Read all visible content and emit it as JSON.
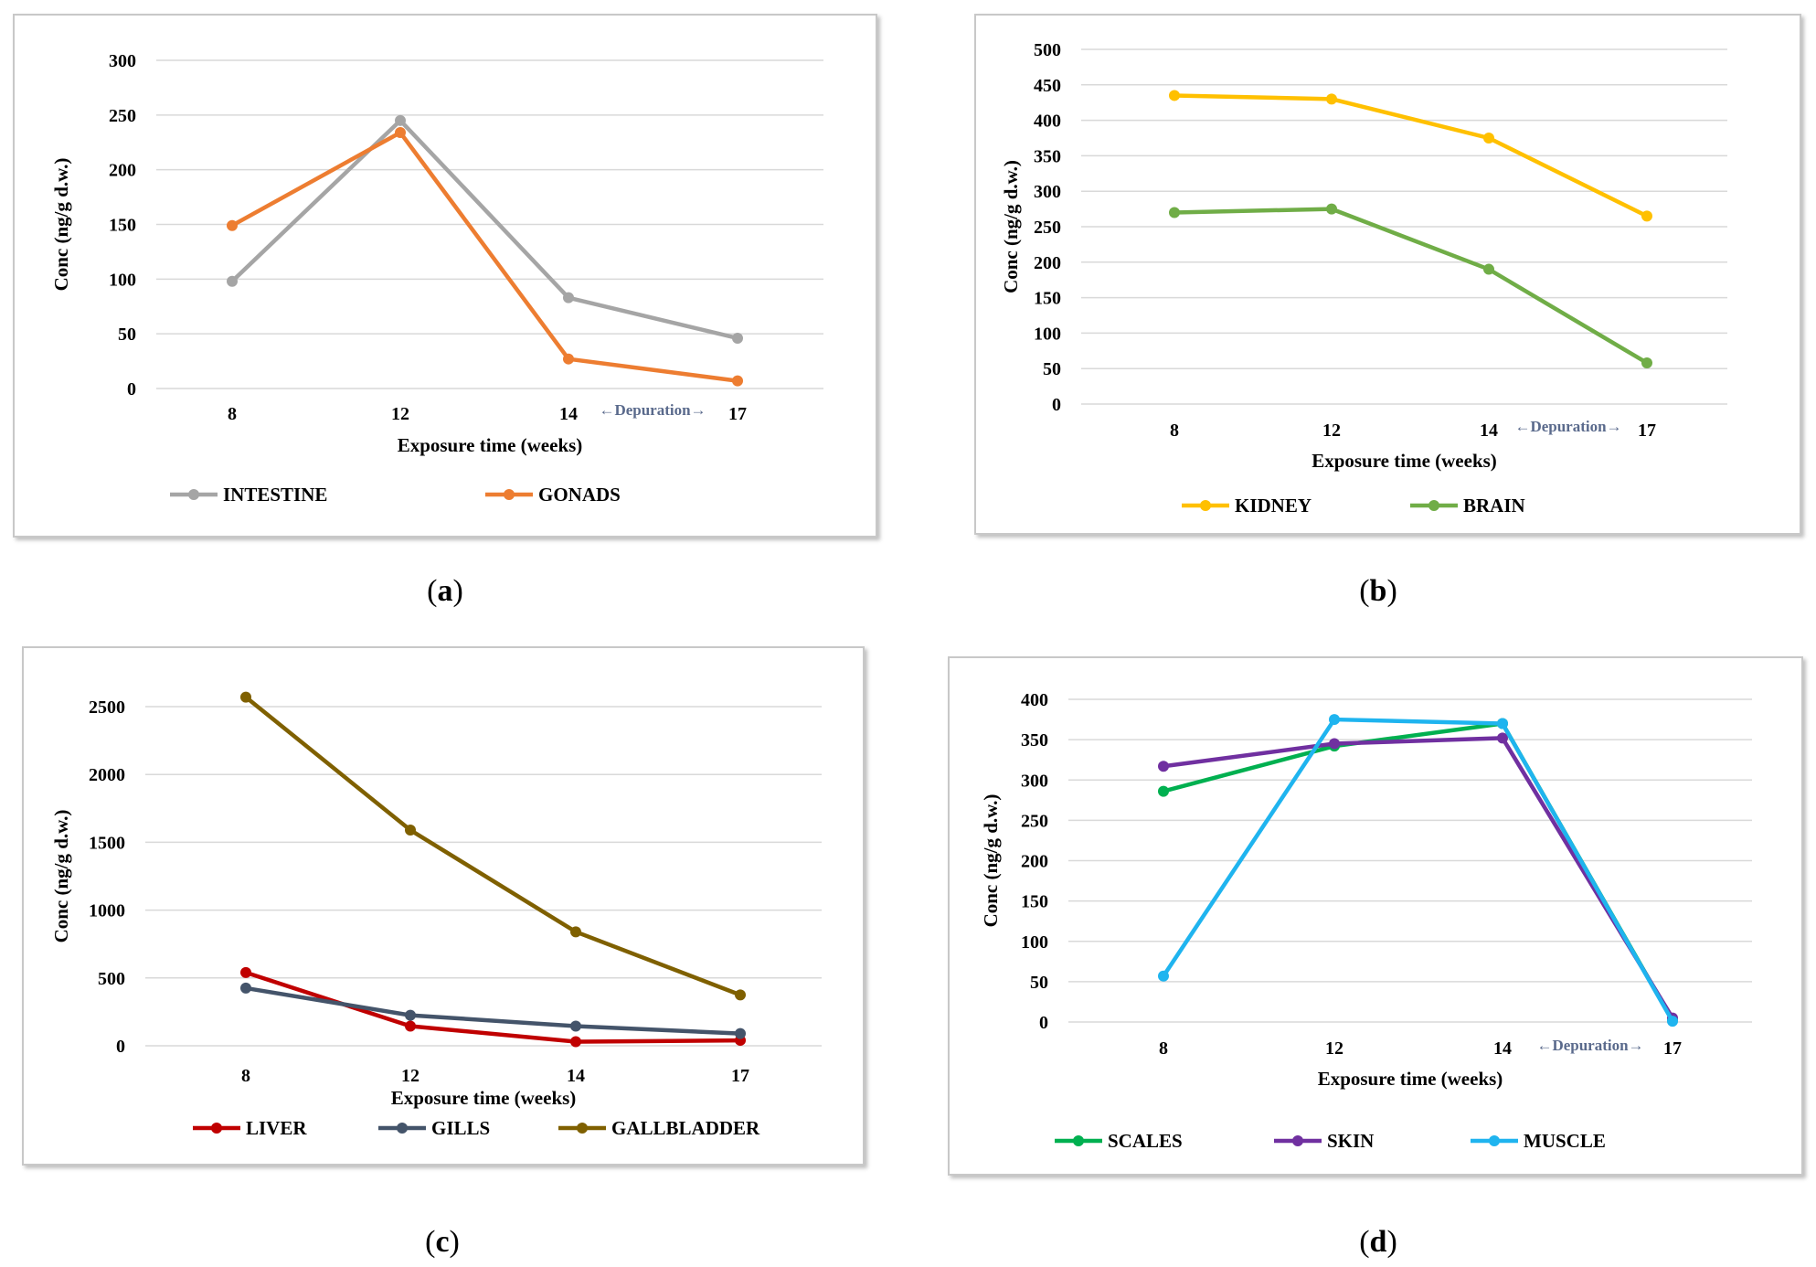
{
  "figure": {
    "captions": [
      "a",
      "b",
      "c",
      "d"
    ]
  },
  "chart_data": [
    {
      "id": "a",
      "type": "line",
      "title": "",
      "xlabel": "Exposure time (weeks)",
      "ylabel": "Conc (ng/g d.w.)",
      "categories": [
        "8",
        "12",
        "14",
        "17"
      ],
      "depuration_label": "←Depuration→",
      "ylim": [
        0,
        300
      ],
      "yticks": [
        0,
        50,
        100,
        150,
        200,
        250,
        300
      ],
      "series": [
        {
          "name": "INTESTINE",
          "color": "#a5a5a5",
          "values": [
            98,
            245,
            83,
            46
          ]
        },
        {
          "name": "GONADS",
          "color": "#ed7d31",
          "values": [
            149,
            234,
            27,
            7
          ]
        }
      ]
    },
    {
      "id": "b",
      "type": "line",
      "title": "",
      "xlabel": "Exposure time (weeks)",
      "ylabel": "Conc (ng/g d.w.)",
      "categories": [
        "8",
        "12",
        "14",
        "17"
      ],
      "depuration_label": "←Depuration→",
      "ylim": [
        0,
        500
      ],
      "yticks": [
        0,
        50,
        100,
        150,
        200,
        250,
        300,
        350,
        400,
        450,
        500
      ],
      "series": [
        {
          "name": "KIDNEY",
          "color": "#ffc000",
          "values": [
            435,
            430,
            375,
            265
          ]
        },
        {
          "name": "BRAIN",
          "color": "#70ad47",
          "values": [
            270,
            275,
            190,
            58
          ]
        }
      ]
    },
    {
      "id": "c",
      "type": "line",
      "title": "",
      "xlabel": "Exposure time (weeks)",
      "ylabel": "Conc (ng/g d.w.)",
      "categories": [
        "8",
        "12",
        "14",
        "17"
      ],
      "depuration_label": "",
      "ylim": [
        0,
        2500
      ],
      "yticks": [
        0,
        500,
        1000,
        1500,
        2000,
        2500
      ],
      "series": [
        {
          "name": "LIVER",
          "color": "#c00000",
          "values": [
            540,
            145,
            30,
            40
          ]
        },
        {
          "name": "GILLS",
          "color": "#44546a",
          "values": [
            425,
            225,
            145,
            90
          ]
        },
        {
          "name": "GALLBLADDER",
          "color": "#7f6000",
          "values": [
            2570,
            1590,
            840,
            375
          ]
        }
      ]
    },
    {
      "id": "d",
      "type": "line",
      "title": "",
      "xlabel": "Exposure time (weeks)",
      "ylabel": "Conc (ng/g d.w.)",
      "categories": [
        "8",
        "12",
        "14",
        "17"
      ],
      "depuration_label": "←Depuration→",
      "ylim": [
        0,
        400
      ],
      "yticks": [
        0,
        50,
        100,
        150,
        200,
        250,
        300,
        350,
        400
      ],
      "series": [
        {
          "name": "SCALES",
          "color": "#00b050",
          "values": [
            286,
            342,
            370,
            2
          ]
        },
        {
          "name": "SKIN",
          "color": "#7030a0",
          "values": [
            317,
            345,
            352,
            5
          ]
        },
        {
          "name": "MUSCLE",
          "color": "#1fb4ef",
          "values": [
            57,
            375,
            370,
            1
          ]
        }
      ]
    }
  ]
}
